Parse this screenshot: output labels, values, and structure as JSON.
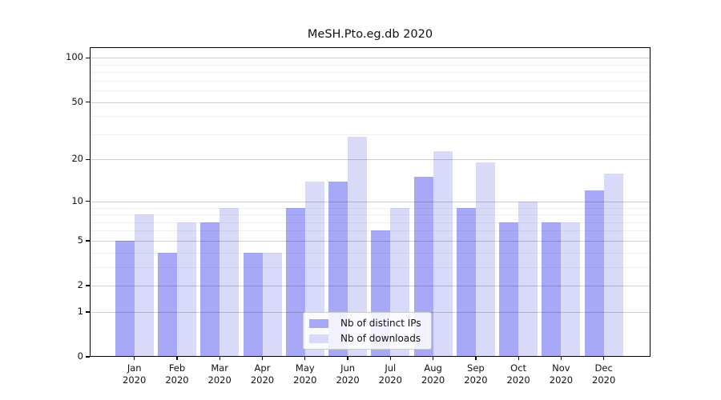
{
  "figure": {
    "title": "MeSH.Pto.eg.db 2020"
  },
  "legend": {
    "items": [
      {
        "label": "Nb of distinct IPs",
        "color": "#a8a8f8"
      },
      {
        "label": "Nb of downloads",
        "color": "#d9d9fa"
      }
    ]
  },
  "chart_data": {
    "type": "bar",
    "title": "MeSH.Pto.eg.db 2020",
    "categories": [
      "Jan 2020",
      "Feb 2020",
      "Mar 2020",
      "Apr 2020",
      "May 2020",
      "Jun 2020",
      "Jul 2020",
      "Aug 2020",
      "Sep 2020",
      "Oct 2020",
      "Nov 2020",
      "Dec 2020"
    ],
    "series": [
      {
        "name": "Nb of distinct IPs",
        "color": "#a8a8f8",
        "values": [
          5,
          4,
          7,
          4,
          9,
          14,
          6,
          15,
          9,
          7,
          7,
          12
        ]
      },
      {
        "name": "Nb of downloads",
        "color": "#d9d9fa",
        "values": [
          8,
          7,
          9,
          4,
          14,
          29,
          9,
          23,
          19,
          10,
          7,
          16
        ]
      }
    ],
    "yscale": "log1p",
    "ylim": [
      0,
      118
    ],
    "yticks": [
      0,
      1,
      2,
      5,
      10,
      20,
      50,
      100
    ],
    "yticks_minor": [
      3,
      4,
      6,
      7,
      8,
      9,
      30,
      40,
      60,
      70,
      80,
      90
    ],
    "grid": true,
    "legend_position": "lower center"
  }
}
